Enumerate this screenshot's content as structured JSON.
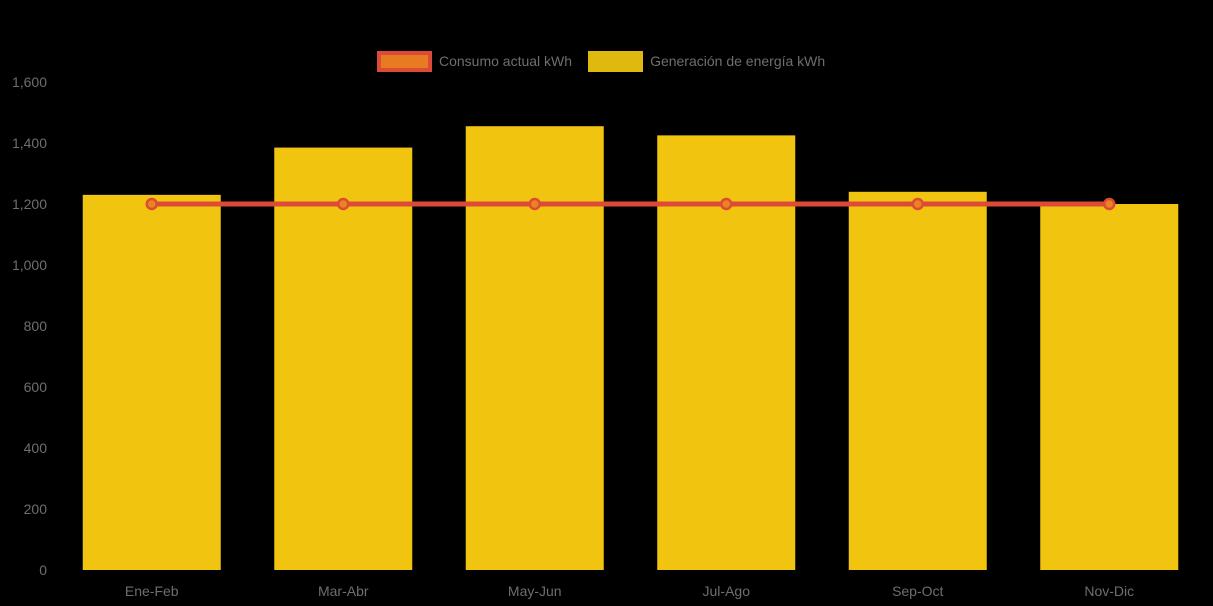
{
  "colors": {
    "background": "#000000",
    "bar": "#F1C40F",
    "legend_bar_swatch": "#DFB90E",
    "line": "#DD4B38",
    "marker_fill": "#E8851F",
    "legend_line_fill": "#E87A22",
    "axis_text": "#6E6E6E"
  },
  "legend": {
    "items": [
      {
        "label": "Consumo actual kWh",
        "series_type": "line"
      },
      {
        "label": "Generación de energía kWh",
        "series_type": "bar"
      }
    ]
  },
  "chart_data": {
    "type": "bar",
    "subtype": "bar-with-line-overlay",
    "title": "",
    "xlabel": "",
    "ylabel": "",
    "categories": [
      "Ene-Feb",
      "Mar-Abr",
      "May-Jun",
      "Jul-Ago",
      "Sep-Oct",
      "Nov-Dic"
    ],
    "series": [
      {
        "name": "Consumo actual kWh",
        "type": "line",
        "values": [
          1200,
          1200,
          1200,
          1200,
          1200,
          1200
        ]
      },
      {
        "name": "Generación de energía kWh",
        "type": "bar",
        "values": [
          1230,
          1385,
          1455,
          1425,
          1240,
          1200
        ]
      }
    ],
    "ylim": [
      0,
      1600
    ],
    "yticks": [
      0,
      200,
      400,
      600,
      800,
      1000,
      1200,
      1400,
      1600
    ],
    "ytick_labels": [
      "0",
      "200",
      "400",
      "600",
      "800",
      "1,000",
      "1,200",
      "1,400",
      "1,600"
    ],
    "grid": false,
    "legend_position": "top"
  }
}
